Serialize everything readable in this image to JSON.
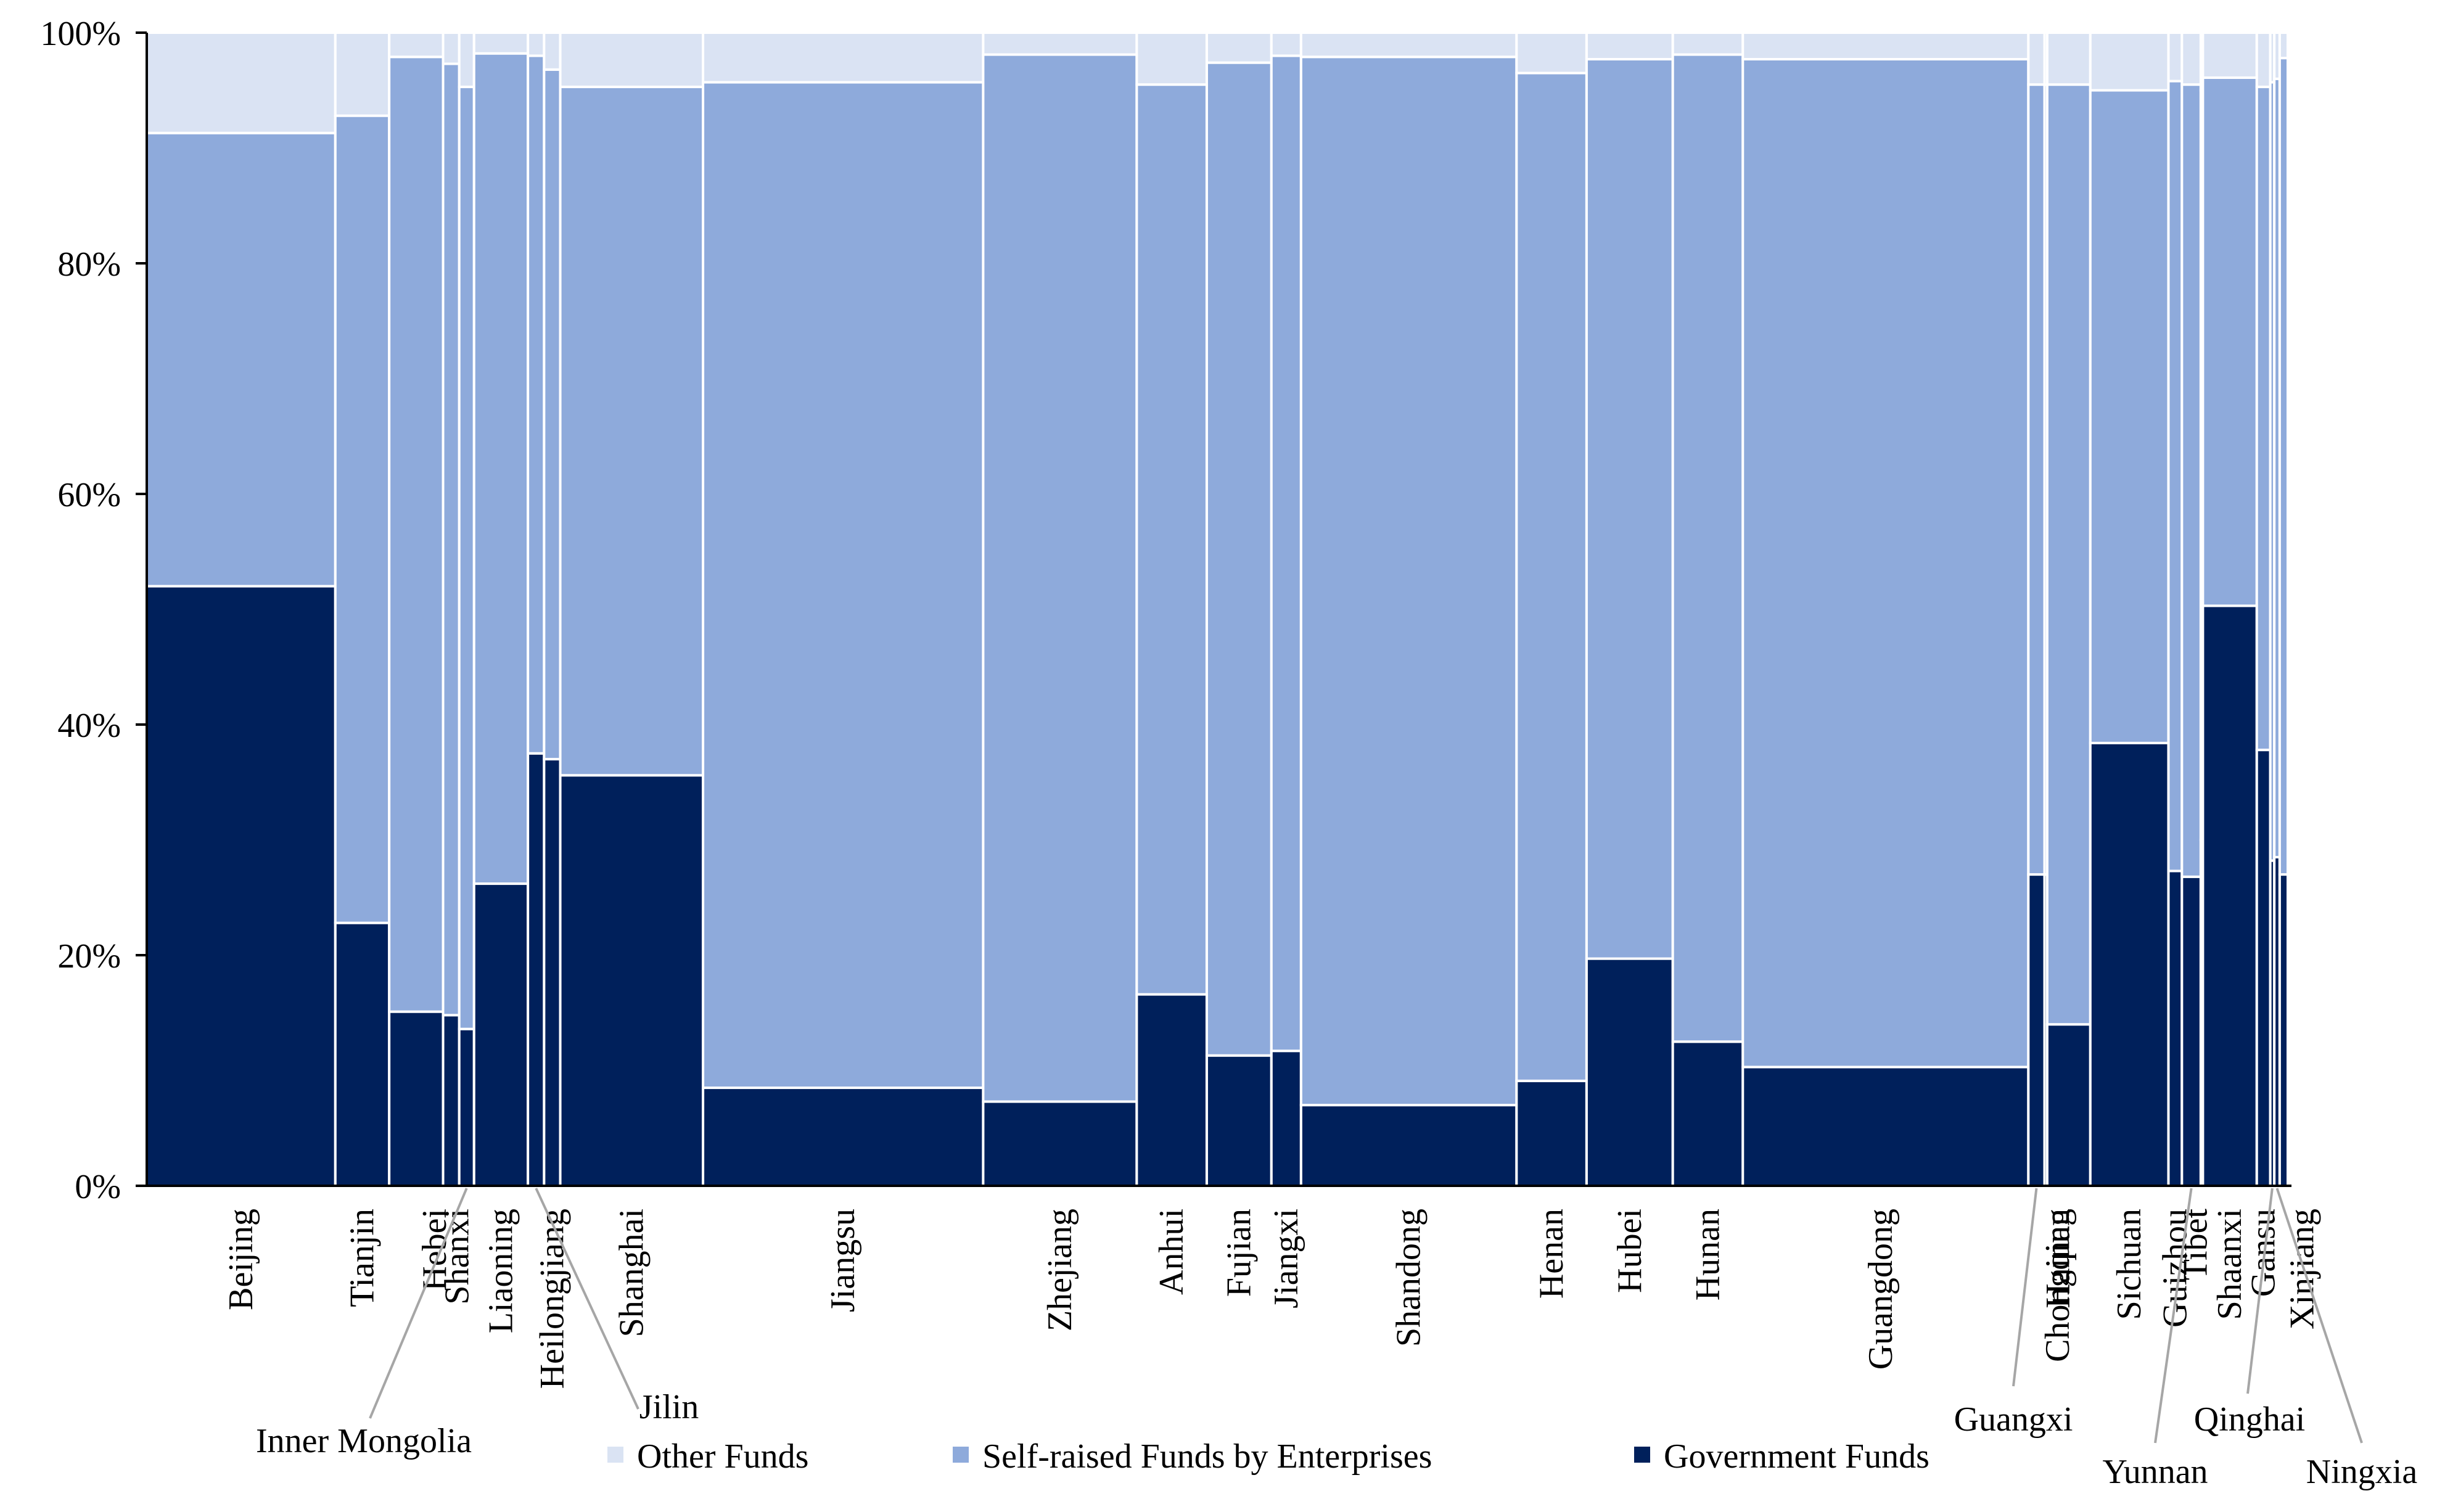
{
  "chart_data": {
    "type": "bar",
    "subtype": "marimekko-100pct-stacked",
    "title": "",
    "xlabel": "",
    "ylabel": "",
    "ylim": [
      0,
      100
    ],
    "yticks": [
      "0%",
      "20%",
      "40%",
      "60%",
      "80%",
      "100%"
    ],
    "grid": false,
    "legend_position": "bottom",
    "series": [
      {
        "name": "Government Funds",
        "key": "gov",
        "color": "#00205b"
      },
      {
        "name": "Self-raised Funds by Enterprises",
        "key": "self",
        "color": "#8eaadb"
      },
      {
        "name": "Other  Funds",
        "key": "other",
        "color": "#dae3f3"
      }
    ],
    "legend_labels": [
      "Other  Funds",
      "Self-raised Funds by Enterprises",
      "Government Funds"
    ],
    "categories": [
      {
        "name": "Beijing",
        "width": 7.0,
        "gov": 52.0,
        "self": 39.3
      },
      {
        "name": "Tianjin",
        "width": 2.0,
        "gov": 22.8,
        "self": 70.0
      },
      {
        "name": "Hebei",
        "width": 2.0,
        "gov": 15.1,
        "self": 82.8
      },
      {
        "name": "Shanxi",
        "width": 0.6,
        "gov": 14.8,
        "self": 82.5
      },
      {
        "name": "Inner Mongolia",
        "width": 0.55,
        "gov": 13.6,
        "self": 81.7
      },
      {
        "name": "Liaoning",
        "width": 2.0,
        "gov": 26.2,
        "self": 72.0
      },
      {
        "name": "Jilin",
        "width": 0.6,
        "gov": 37.5,
        "self": 60.5
      },
      {
        "name": "Heilongjiang",
        "width": 0.6,
        "gov": 37.0,
        "self": 59.8
      },
      {
        "name": "Shanghai",
        "width": 5.3,
        "gov": 35.6,
        "self": 59.7
      },
      {
        "name": "Jiangsu",
        "width": 10.4,
        "gov": 8.5,
        "self": 87.2
      },
      {
        "name": "Zhejiang",
        "width": 5.7,
        "gov": 7.3,
        "self": 90.8
      },
      {
        "name": "Anhui",
        "width": 2.6,
        "gov": 16.6,
        "self": 78.9
      },
      {
        "name": "Fujian",
        "width": 2.4,
        "gov": 11.3,
        "self": 86.1
      },
      {
        "name": "Jiangxi",
        "width": 1.1,
        "gov": 11.7,
        "self": 86.3
      },
      {
        "name": "Shandong",
        "width": 8.0,
        "gov": 7.0,
        "self": 90.9
      },
      {
        "name": "Henan",
        "width": 2.6,
        "gov": 9.1,
        "self": 87.4
      },
      {
        "name": "Hubei",
        "width": 3.2,
        "gov": 19.7,
        "self": 78.0
      },
      {
        "name": "Hunan",
        "width": 2.6,
        "gov": 12.5,
        "self": 85.6
      },
      {
        "name": "Guangdong",
        "width": 10.6,
        "gov": 10.3,
        "self": 87.4
      },
      {
        "name": "Guangxi",
        "width": 0.6,
        "gov": 27.0,
        "self": 68.5
      },
      {
        "name": "Hainan",
        "width": 0.1,
        "gov": 27.0,
        "self": 68.5
      },
      {
        "name": "Chongqing",
        "width": 1.6,
        "gov": 14.0,
        "self": 81.5
      },
      {
        "name": "Sichuan",
        "width": 2.9,
        "gov": 38.4,
        "self": 56.6
      },
      {
        "name": "Guizhou",
        "width": 0.5,
        "gov": 27.3,
        "self": 68.5
      },
      {
        "name": "Yunnan",
        "width": 0.7,
        "gov": 26.8,
        "self": 68.7
      },
      {
        "name": "Tibet",
        "width": 0.08,
        "gov": 30.0,
        "self": 65.0
      },
      {
        "name": "Shaanxi",
        "width": 2.0,
        "gov": 50.3,
        "self": 45.8
      },
      {
        "name": "Gansu",
        "width": 0.5,
        "gov": 37.8,
        "self": 57.5
      },
      {
        "name": "Qinghai",
        "width": 0.15,
        "gov": 28.2,
        "self": 67.5
      },
      {
        "name": "Ningxia",
        "width": 0.2,
        "gov": 28.5,
        "self": 67.5
      },
      {
        "name": "Xinjiang",
        "width": 0.3,
        "gov": 27.0,
        "self": 70.8
      }
    ]
  }
}
